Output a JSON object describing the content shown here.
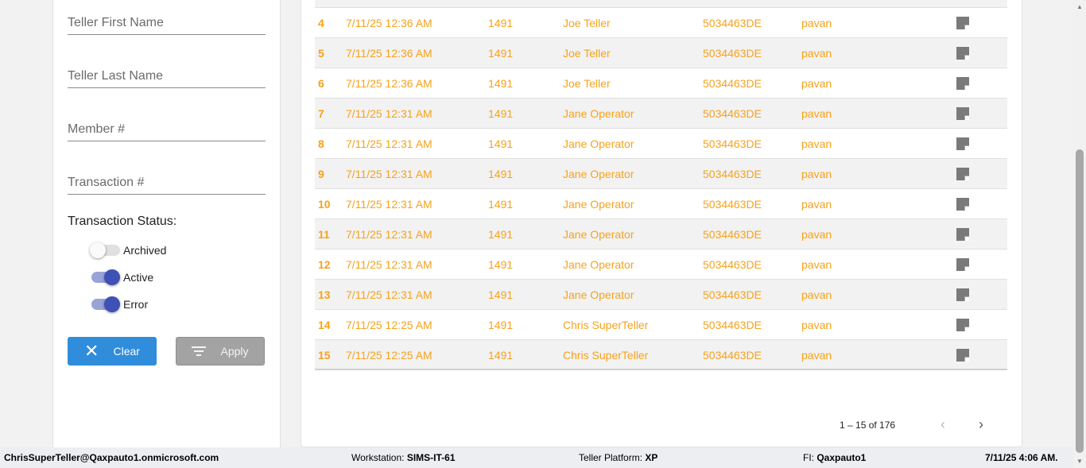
{
  "filters": {
    "first_name": "Teller First Name",
    "last_name": "Teller Last Name",
    "member": "Member #",
    "transaction": "Transaction #",
    "status_label": "Transaction Status:",
    "toggles": [
      {
        "label": "Archived",
        "on": false
      },
      {
        "label": "Active",
        "on": true
      },
      {
        "label": "Error",
        "on": true
      }
    ],
    "clear": "Clear",
    "apply": "Apply"
  },
  "rows": [
    [
      "4",
      "7/11/25 12:36 AM",
      "1491",
      "Joe Teller",
      "5034463DE",
      "pavan"
    ],
    [
      "5",
      "7/11/25 12:36 AM",
      "1491",
      "Joe Teller",
      "5034463DE",
      "pavan"
    ],
    [
      "6",
      "7/11/25 12:36 AM",
      "1491",
      "Joe Teller",
      "5034463DE",
      "pavan"
    ],
    [
      "7",
      "7/11/25 12:31 AM",
      "1491",
      "Jane Operator",
      "5034463DE",
      "pavan"
    ],
    [
      "8",
      "7/11/25 12:31 AM",
      "1491",
      "Jane Operator",
      "5034463DE",
      "pavan"
    ],
    [
      "9",
      "7/11/25 12:31 AM",
      "1491",
      "Jane Operator",
      "5034463DE",
      "pavan"
    ],
    [
      "10",
      "7/11/25 12:31 AM",
      "1491",
      "Jane Operator",
      "5034463DE",
      "pavan"
    ],
    [
      "11",
      "7/11/25 12:31 AM",
      "1491",
      "Jane Operator",
      "5034463DE",
      "pavan"
    ],
    [
      "12",
      "7/11/25 12:31 AM",
      "1491",
      "Jane Operator",
      "5034463DE",
      "pavan"
    ],
    [
      "13",
      "7/11/25 12:31 AM",
      "1491",
      "Jane Operator",
      "5034463DE",
      "pavan"
    ],
    [
      "14",
      "7/11/25 12:25 AM",
      "1491",
      "Chris SuperTeller",
      "5034463DE",
      "pavan"
    ],
    [
      "15",
      "7/11/25 12:25 AM",
      "1491",
      "Chris SuperTeller",
      "5034463DE",
      "pavan"
    ]
  ],
  "row_icon": "note-icon",
  "pager": {
    "range": "1 – 15 of 176",
    "prev": "‹",
    "next": "›"
  },
  "footer": {
    "user": "ChrisSuperTeller@Qaxpauto1.onmicrosoft.com",
    "ws_label": "Workstation:",
    "ws": "SIMS-IT-61",
    "tp_label": "Teller Platform:",
    "tp": "XP",
    "fi_label": "FI:",
    "fi": "Qaxpauto1",
    "time": "7/11/25 4:06 AM."
  },
  "colors": {
    "accent": "#f7a21b",
    "clear": "#2f8ddb",
    "toggle": "#3f51b5"
  }
}
